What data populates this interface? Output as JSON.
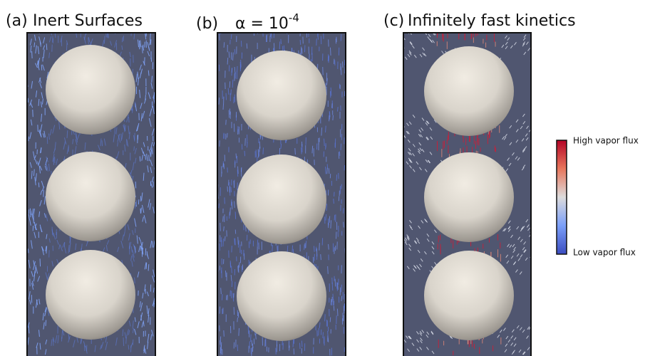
{
  "panels": [
    {
      "label": "(a)",
      "title": "Inert Surfaces"
    },
    {
      "label": "(b)",
      "title": "α = 10",
      "superscript": "-4"
    },
    {
      "label": "(c)",
      "title": "Infinitely fast kinetics"
    }
  ],
  "colorbar": {
    "high_label": "High vapor flux",
    "low_label": "Low vapor flux"
  }
}
